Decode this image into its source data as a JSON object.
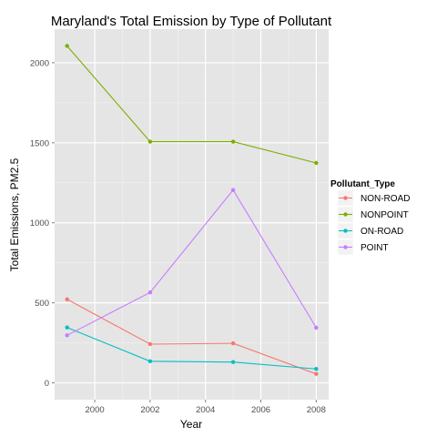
{
  "chart_data": {
    "type": "line",
    "title": "Maryland's Total Emission by Type of Pollutant",
    "xlabel": "Year",
    "ylabel": "Total Emissions, PM2.5",
    "x": [
      1999,
      2002,
      2005,
      2008
    ],
    "xlim": [
      1998.55,
      2008.45
    ],
    "ylim": [
      -105,
      2210
    ],
    "x_ticks": [
      2000,
      2002,
      2004,
      2006,
      2008
    ],
    "y_ticks": [
      0,
      500,
      1000,
      1500,
      2000
    ],
    "grid": true,
    "legend": {
      "title": "Pollutant_Type",
      "placement": "right"
    },
    "series": [
      {
        "name": "NON-ROAD",
        "color": "#F8766D",
        "values": [
          522,
          242,
          247,
          56
        ]
      },
      {
        "name": "NONPOINT",
        "color": "#7CAE00",
        "values": [
          2105,
          1507,
          1507,
          1374
        ]
      },
      {
        "name": "ON-ROAD",
        "color": "#00BFC4",
        "values": [
          346,
          135,
          130,
          87
        ]
      },
      {
        "name": "POINT",
        "color": "#C77CFF",
        "values": [
          297,
          565,
          1205,
          345
        ]
      }
    ]
  }
}
